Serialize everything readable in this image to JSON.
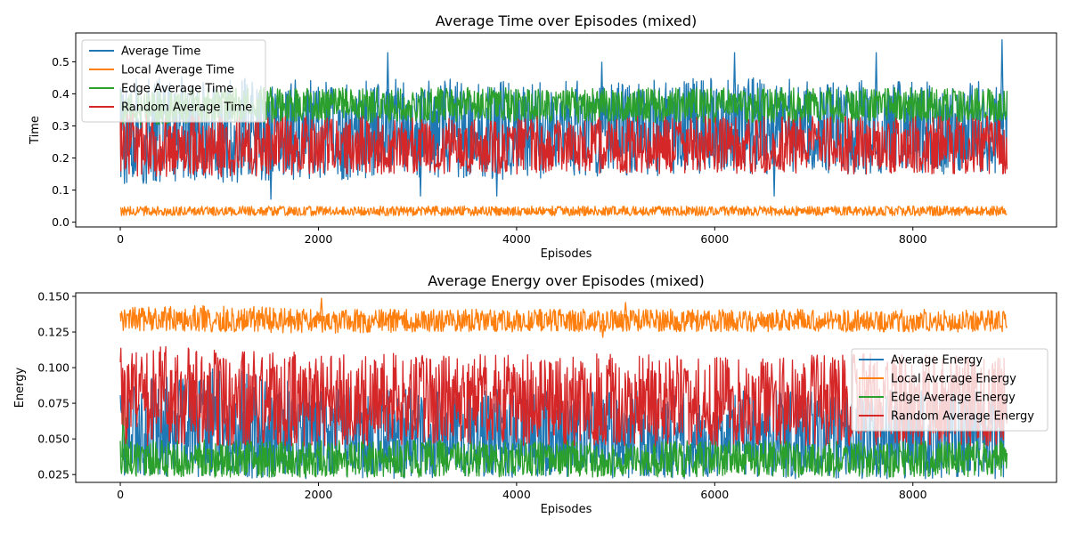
{
  "chart_data": [
    {
      "type": "line",
      "title": "Average Time over Episodes (mixed)",
      "xlabel": "Episodes",
      "ylabel": "Time",
      "xlim": [
        -450,
        9450
      ],
      "ylim": [
        -0.015,
        0.59
      ],
      "xticks": [
        0,
        2000,
        4000,
        6000,
        8000
      ],
      "xtick_labels": [
        "0",
        "2000",
        "4000",
        "6000",
        "8000"
      ],
      "yticks": [
        0.0,
        0.1,
        0.2,
        0.3,
        0.4,
        0.5
      ],
      "ytick_labels": [
        "0.0",
        "0.1",
        "0.2",
        "0.3",
        "0.4",
        "0.5"
      ],
      "grid": false,
      "legend_position": "top-left",
      "series": [
        {
          "name": "Average Time",
          "color": "#1f77b4",
          "x_start": 0,
          "x_end": 8950,
          "band_low": [
            0.12,
            0.12,
            0.13,
            0.14,
            0.13,
            0.14,
            0.15,
            0.15,
            0.15,
            0.15
          ],
          "band_high": [
            0.45,
            0.46,
            0.44,
            0.45,
            0.44,
            0.44,
            0.45,
            0.45,
            0.44,
            0.44
          ],
          "spikes": [
            [
              1520,
              0.07
            ],
            [
              2700,
              0.53
            ],
            [
              3030,
              0.08
            ],
            [
              3800,
              0.08
            ],
            [
              4860,
              0.5
            ],
            [
              6200,
              0.53
            ],
            [
              6600,
              0.08
            ],
            [
              7630,
              0.53
            ],
            [
              8900,
              0.57
            ]
          ]
        },
        {
          "name": "Local Average Time",
          "color": "#ff7f0e",
          "x_start": 0,
          "x_end": 8950,
          "band_low": [
            0.02,
            0.02,
            0.02,
            0.02,
            0.02,
            0.02,
            0.02,
            0.02,
            0.02,
            0.02
          ],
          "band_high": [
            0.05,
            0.05,
            0.05,
            0.05,
            0.05,
            0.05,
            0.05,
            0.05,
            0.05,
            0.05
          ],
          "spikes": []
        },
        {
          "name": "Edge Average Time",
          "color": "#2ca02c",
          "x_start": 0,
          "x_end": 8950,
          "band_low": [
            0.3,
            0.31,
            0.31,
            0.31,
            0.31,
            0.31,
            0.31,
            0.31,
            0.31,
            0.31
          ],
          "band_high": [
            0.41,
            0.42,
            0.42,
            0.42,
            0.42,
            0.42,
            0.42,
            0.42,
            0.42,
            0.42
          ],
          "spikes": []
        },
        {
          "name": "Random Average Time",
          "color": "#d62728",
          "x_start": 0,
          "x_end": 8950,
          "band_low": [
            0.14,
            0.14,
            0.15,
            0.15,
            0.15,
            0.15,
            0.15,
            0.15,
            0.15,
            0.15
          ],
          "band_high": [
            0.34,
            0.33,
            0.33,
            0.33,
            0.33,
            0.33,
            0.33,
            0.33,
            0.33,
            0.33
          ],
          "spikes": []
        }
      ]
    },
    {
      "type": "line",
      "title": "Average Energy over Episodes (mixed)",
      "xlabel": "Episodes",
      "ylabel": "Energy",
      "xlim": [
        -450,
        9450
      ],
      "ylim": [
        0.0195,
        0.1525
      ],
      "xticks": [
        0,
        2000,
        4000,
        6000,
        8000
      ],
      "xtick_labels": [
        "0",
        "2000",
        "4000",
        "6000",
        "8000"
      ],
      "yticks": [
        0.025,
        0.05,
        0.075,
        0.1,
        0.125,
        0.15
      ],
      "ytick_labels": [
        "0.025",
        "0.050",
        "0.075",
        "0.100",
        "0.125",
        "0.150"
      ],
      "grid": false,
      "legend_position": "center-right",
      "series": [
        {
          "name": "Average Energy",
          "color": "#1f77b4",
          "x_start": 0,
          "x_end": 8950,
          "band_low": [
            0.023,
            0.022,
            0.022,
            0.022,
            0.022,
            0.022,
            0.022,
            0.022,
            0.022,
            0.022
          ],
          "band_high": [
            0.09,
            0.1,
            0.09,
            0.085,
            0.085,
            0.085,
            0.085,
            0.085,
            0.085,
            0.085
          ],
          "spikes": []
        },
        {
          "name": "Local Average Energy",
          "color": "#ff7f0e",
          "x_start": 0,
          "x_end": 8950,
          "band_low": [
            0.126,
            0.125,
            0.124,
            0.125,
            0.125,
            0.125,
            0.125,
            0.125,
            0.125,
            0.125
          ],
          "band_high": [
            0.142,
            0.144,
            0.141,
            0.141,
            0.141,
            0.141,
            0.141,
            0.141,
            0.141,
            0.14
          ],
          "spikes": [
            [
              2030,
              0.149
            ],
            [
              5100,
              0.146
            ],
            [
              4870,
              0.121
            ]
          ]
        },
        {
          "name": "Edge Average Energy",
          "color": "#2ca02c",
          "x_start": 0,
          "x_end": 8950,
          "band_low": [
            0.024,
            0.023,
            0.023,
            0.023,
            0.023,
            0.023,
            0.023,
            0.023,
            0.023,
            0.023
          ],
          "band_high": [
            0.05,
            0.049,
            0.049,
            0.049,
            0.049,
            0.049,
            0.049,
            0.049,
            0.049,
            0.049
          ],
          "spikes": [
            [
              30,
              0.071
            ],
            [
              60,
              0.065
            ]
          ]
        },
        {
          "name": "Random Average Energy",
          "color": "#d62728",
          "x_start": 0,
          "x_end": 8950,
          "band_low": [
            0.045,
            0.045,
            0.045,
            0.045,
            0.045,
            0.045,
            0.045,
            0.045,
            0.045,
            0.045
          ],
          "band_high": [
            0.115,
            0.115,
            0.11,
            0.11,
            0.11,
            0.11,
            0.11,
            0.11,
            0.11,
            0.11
          ],
          "spikes": []
        }
      ]
    }
  ]
}
